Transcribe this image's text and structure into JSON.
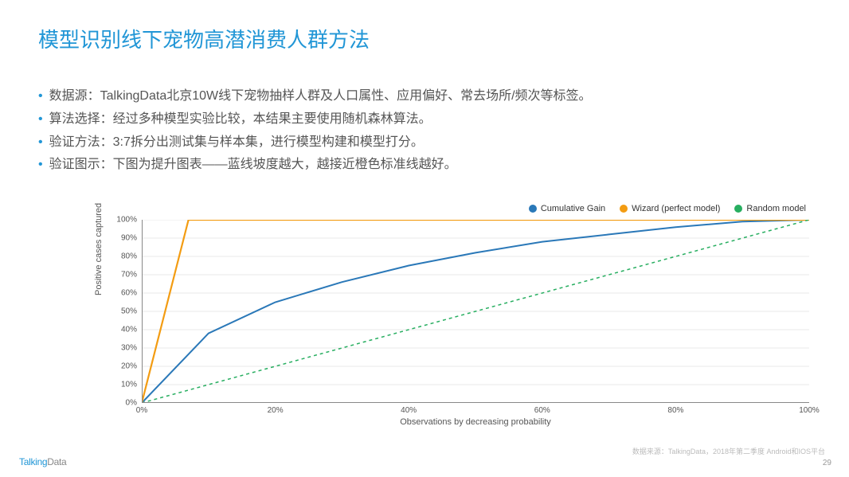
{
  "title": "模型识别线下宠物高潜消费人群方法",
  "bullets": [
    "数据源：TalkingData北京10W线下宠物抽样人群及人口属性、应用偏好、常去场所/频次等标签。",
    "算法选择：经过多种模型实验比较，本结果主要使用随机森林算法。",
    "验证方法：3:7拆分出测试集与样本集，进行模型构建和模型打分。",
    "验证图示：下图为提升图表——蓝线坡度越大，越接近橙色标准线越好。"
  ],
  "chart": {
    "type": "line",
    "legend": [
      {
        "label": "Cumulative Gain",
        "color": "#2a78b8"
      },
      {
        "label": "Wizard (perfect model)",
        "color": "#f39c12"
      },
      {
        "label": "Random model",
        "color": "#27ae60"
      }
    ],
    "xlabel": "Observations by decreasing probability",
    "ylabel": "Positive cases captured",
    "xlim": [
      0,
      100
    ],
    "ylim": [
      0,
      100
    ],
    "xticks": [
      0,
      20,
      40,
      60,
      80,
      100
    ],
    "xtick_labels": [
      "0%",
      "20%",
      "40%",
      "60%",
      "80%",
      "100%"
    ],
    "yticks": [
      0,
      10,
      20,
      30,
      40,
      50,
      60,
      70,
      80,
      90,
      100
    ],
    "ytick_labels": [
      "0%",
      "10%",
      "20%",
      "30%",
      "40%",
      "50%",
      "60%",
      "70%",
      "80%",
      "90%",
      "100%"
    ],
    "grid_color": "#e8e8e8",
    "axis_color": "#888888",
    "background_color": "#ffffff",
    "label_fontsize": 11,
    "tick_fontsize": 10,
    "series": [
      {
        "name": "Cumulative Gain",
        "color": "#2a78b8",
        "line_width": 2,
        "dash": "none",
        "points": [
          [
            0,
            0
          ],
          [
            10,
            38
          ],
          [
            20,
            55
          ],
          [
            30,
            66
          ],
          [
            40,
            75
          ],
          [
            50,
            82
          ],
          [
            60,
            88
          ],
          [
            70,
            92
          ],
          [
            80,
            96
          ],
          [
            90,
            99
          ],
          [
            100,
            100
          ]
        ]
      },
      {
        "name": "Wizard (perfect model)",
        "color": "#f39c12",
        "line_width": 2.2,
        "dash": "none",
        "points": [
          [
            0,
            0
          ],
          [
            7,
            100
          ],
          [
            100,
            100
          ]
        ]
      },
      {
        "name": "Random model",
        "color": "#27ae60",
        "line_width": 1.5,
        "dash": "4,4",
        "points": [
          [
            0,
            0
          ],
          [
            100,
            100
          ]
        ]
      }
    ]
  },
  "source": "数据来源：TalkingData，2018年第二季度 Android和IOS平台",
  "footer_logo_a": "Talking",
  "footer_logo_b": "Data",
  "page_number": "29"
}
